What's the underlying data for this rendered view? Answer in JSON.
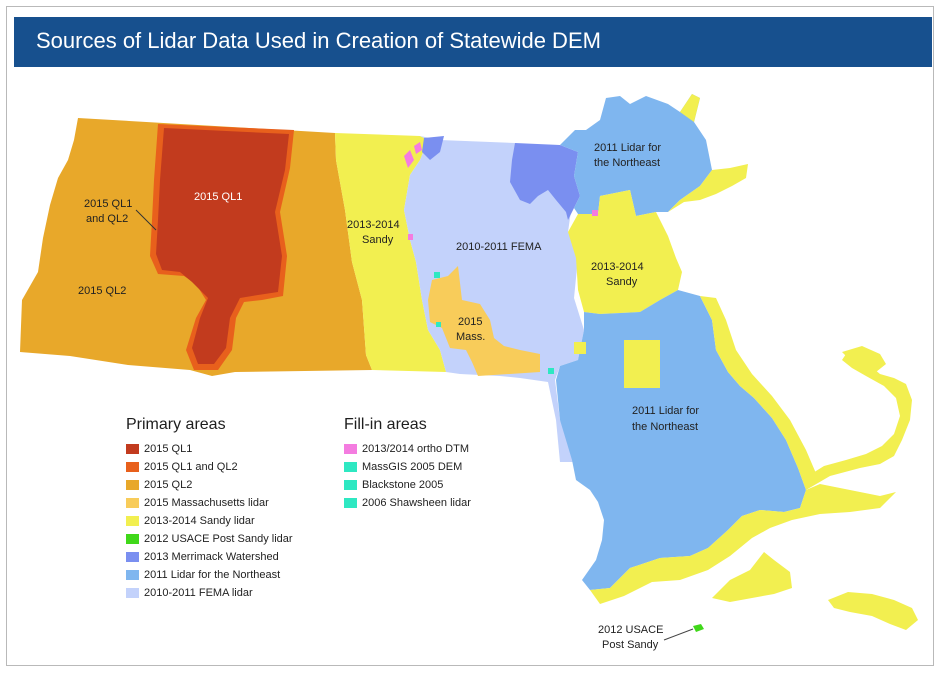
{
  "title": "Sources of Lidar Data Used in Creation of Statewide DEM",
  "colors": {
    "title_bar": "#17508e",
    "ql1": "#c23b1e",
    "ql1_ql2": "#e8601c",
    "ql2": "#e8a82a",
    "mass_2015": "#f8cc5a",
    "sandy": "#f2ef50",
    "usace": "#40d81a",
    "merrimack": "#7a8ff0",
    "northeast": "#7fb6ef",
    "fema": "#c3d2fb",
    "ortho_dtm": "#f47ce0",
    "massgis": "#2ee8c2",
    "blackstone": "#2ee8c2",
    "shawsheen": "#2ee8c2"
  },
  "map_labels": {
    "ql1": "2015 QL1",
    "ql1_ql2_line1": "2015 QL1",
    "ql1_ql2_line2": "and QL2",
    "ql2": "2015 QL2",
    "sandy_west_line1": "2013-2014",
    "sandy_west_line2": "Sandy",
    "fema": "2010-2011 FEMA",
    "mass_line1": "2015",
    "mass_line2": "Mass.",
    "ne_north_line1": "2011 Lidar for",
    "ne_north_line2": "the Northeast",
    "sandy_east_line1": "2013-2014",
    "sandy_east_line2": "Sandy",
    "ne_south_line1": "2011 Lidar for",
    "ne_south_line2": "the Northeast",
    "usace_line1": "2012 USACE",
    "usace_line2": "Post Sandy"
  },
  "legend_primary": {
    "heading": "Primary areas",
    "items": [
      {
        "label": "2015 QL1",
        "color": "#c23b1e"
      },
      {
        "label": "2015 QL1 and QL2",
        "color": "#e8601c"
      },
      {
        "label": "2015 QL2",
        "color": "#e8a82a"
      },
      {
        "label": "2015 Massachusetts lidar",
        "color": "#f8cc5a"
      },
      {
        "label": "2013-2014 Sandy lidar",
        "color": "#f2ef50"
      },
      {
        "label": "2012 USACE Post Sandy lidar",
        "color": "#40d81a"
      },
      {
        "label": "2013 Merrimack Watershed",
        "color": "#7a8ff0"
      },
      {
        "label": "2011 Lidar for the Northeast",
        "color": "#7fb6ef"
      },
      {
        "label": "2010-2011 FEMA lidar",
        "color": "#c3d2fb"
      }
    ]
  },
  "legend_fill": {
    "heading": "Fill-in areas",
    "items": [
      {
        "label": "2013/2014 ortho DTM",
        "color": "#f47ce0"
      },
      {
        "label": "MassGIS 2005 DEM",
        "color": "#2ee8c2"
      },
      {
        "label": "Blackstone 2005",
        "color": "#2ee8c2"
      },
      {
        "label": "2006 Shawsheen lidar",
        "color": "#2ee8c2"
      }
    ]
  }
}
